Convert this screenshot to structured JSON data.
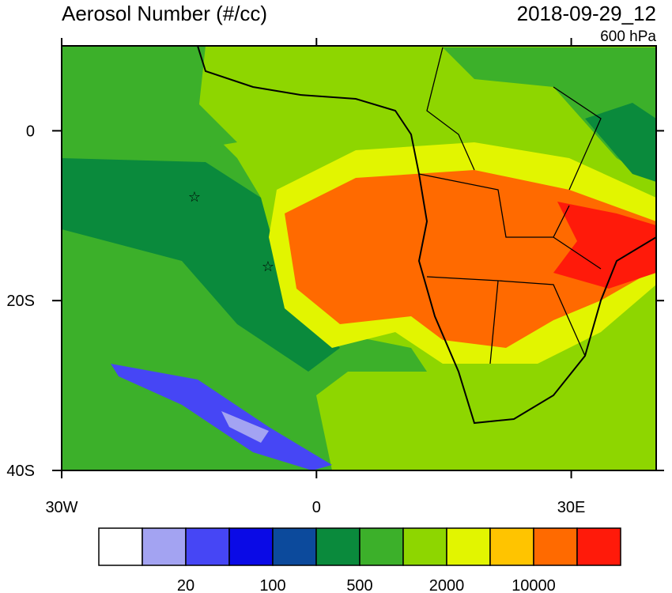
{
  "chart_data": {
    "type": "map",
    "title": "Aerosol Number (#/cc)",
    "date": "2018-09-29_12",
    "level": "600 hPa",
    "xlim": [
      -30,
      40
    ],
    "ylim": [
      -40,
      10
    ],
    "xticks": [
      {
        "value": -30,
        "label": "30W"
      },
      0,
      {
        "value": 30,
        "label": "30E"
      }
    ],
    "yticks": [
      0,
      {
        "value": -20,
        "label": "20S"
      },
      {
        "value": -40,
        "label": "40S"
      }
    ],
    "colorbar": {
      "colors": [
        "#ffffff",
        "#a3a3f2",
        "#4646f5",
        "#0a0ae6",
        "#0c4a9c",
        "#0a8a3c",
        "#3cb02a",
        "#8ed600",
        "#e2f500",
        "#ffc400",
        "#ff6a00",
        "#ff1a0a"
      ],
      "levels": [
        null,
        20,
        null,
        100,
        null,
        500,
        null,
        2000,
        null,
        10000,
        null
      ]
    }
  }
}
